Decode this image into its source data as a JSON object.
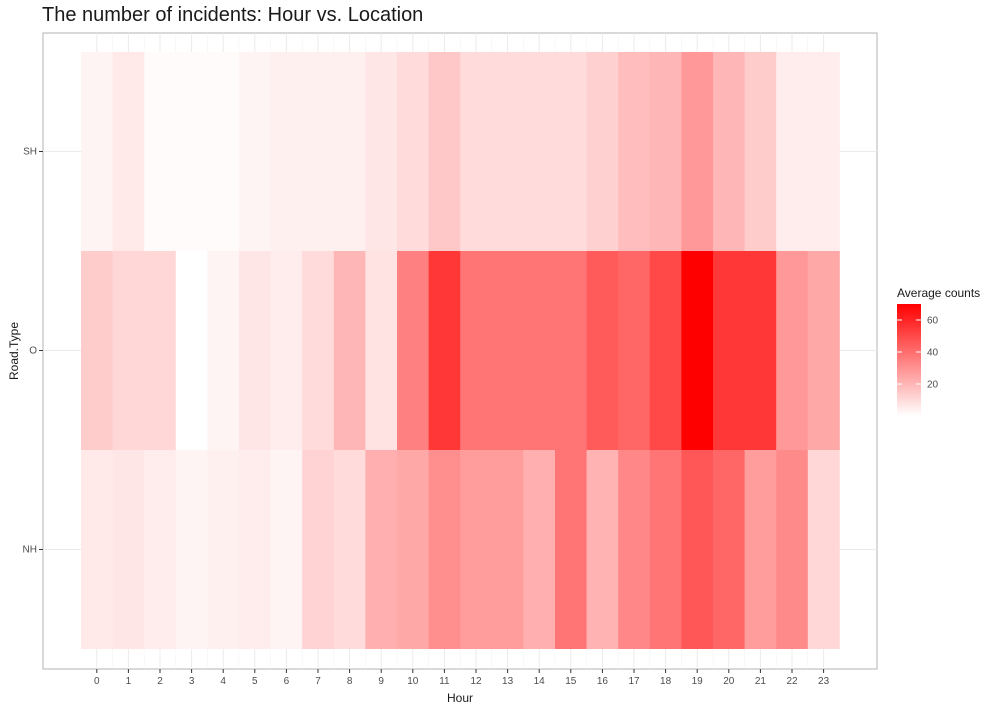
{
  "chart_data": {
    "type": "heatmap",
    "title": "The number of incidents: Hour vs. Location",
    "xlabel": "Hour",
    "ylabel": "Road.Type",
    "x_categories": [
      "0",
      "1",
      "2",
      "3",
      "4",
      "5",
      "6",
      "7",
      "8",
      "9",
      "10",
      "11",
      "12",
      "13",
      "14",
      "15",
      "16",
      "17",
      "18",
      "19",
      "20",
      "21",
      "22",
      "23"
    ],
    "y_categories": [
      "NH",
      "O",
      "SH"
    ],
    "series": [
      {
        "row": "SH",
        "values": [
          3,
          6,
          1,
          1,
          1,
          3,
          4,
          4,
          4,
          7,
          10,
          15,
          10,
          10,
          10,
          10,
          13,
          18,
          20,
          28,
          20,
          14,
          5,
          5
        ]
      },
      {
        "row": "O",
        "values": [
          14,
          11,
          11,
          0,
          3,
          7,
          5,
          10,
          20,
          8,
          35,
          55,
          38,
          38,
          38,
          38,
          45,
          42,
          50,
          70,
          55,
          55,
          28,
          24
        ]
      },
      {
        "row": "NH",
        "values": [
          6,
          7,
          5,
          3,
          4,
          5,
          3,
          12,
          10,
          22,
          24,
          31,
          27,
          27,
          22,
          38,
          21,
          33,
          38,
          46,
          42,
          27,
          32,
          11
        ]
      }
    ],
    "legend": {
      "title": "Average counts",
      "ticks": [
        20,
        40,
        60
      ],
      "position": "right",
      "low_color": "#ffffff",
      "high_color": "#ff0000",
      "range": [
        0,
        70
      ]
    },
    "grid": true
  }
}
